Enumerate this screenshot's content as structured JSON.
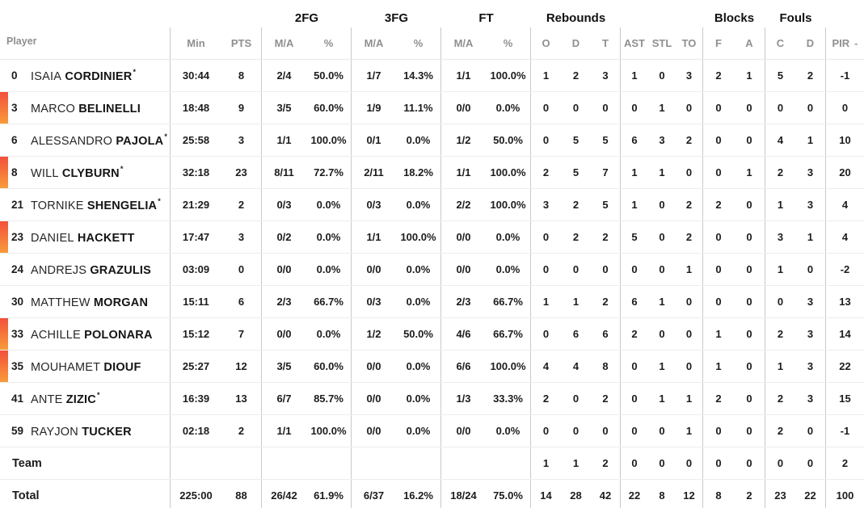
{
  "colors": {
    "on_court_accent_top": "#f2503c",
    "on_court_accent_bottom": "#f89b3c",
    "header_gray": "#8f8f8f",
    "text": "#1c1c1c",
    "row_divider": "#ececec",
    "column_divider": "#c9c9c9"
  },
  "header": {
    "player_label": "Player",
    "group_labels": {
      "fg2": "2FG",
      "fg3": "3FG",
      "ft": "FT",
      "rebounds": "Rebounds",
      "blocks": "Blocks",
      "fouls": "Fouls"
    },
    "col_labels": {
      "min": "Min",
      "pts": "PTS",
      "ma": "M/A",
      "pct": "%",
      "reb_o": "O",
      "reb_d": "D",
      "reb_t": "T",
      "ast": "AST",
      "stl": "STL",
      "to": "TO",
      "blk_f": "F",
      "blk_a": "A",
      "foul_c": "C",
      "foul_d": "D",
      "pir": "PIR",
      "pir_sort_indicator": "-"
    }
  },
  "rows": [
    {
      "number": "0",
      "first": "ISAIA",
      "last": "CORDINIER",
      "star": "*",
      "on_court": false,
      "min": "30:44",
      "pts": "8",
      "fg2_ma": "2/4",
      "fg2_pct": "50.0%",
      "fg3_ma": "1/7",
      "fg3_pct": "14.3%",
      "ft_ma": "1/1",
      "ft_pct": "100.0%",
      "reb_o": "1",
      "reb_d": "2",
      "reb_t": "3",
      "ast": "1",
      "stl": "0",
      "to": "3",
      "blk_f": "2",
      "blk_a": "1",
      "foul_c": "5",
      "foul_d": "2",
      "pir": "-1"
    },
    {
      "number": "3",
      "first": "MARCO",
      "last": "BELINELLI",
      "on_court": true,
      "min": "18:48",
      "pts": "9",
      "fg2_ma": "3/5",
      "fg2_pct": "60.0%",
      "fg3_ma": "1/9",
      "fg3_pct": "11.1%",
      "ft_ma": "0/0",
      "ft_pct": "0.0%",
      "reb_o": "0",
      "reb_d": "0",
      "reb_t": "0",
      "ast": "0",
      "stl": "1",
      "to": "0",
      "blk_f": "0",
      "blk_a": "0",
      "foul_c": "0",
      "foul_d": "0",
      "pir": "0"
    },
    {
      "number": "6",
      "first": "ALESSANDRO",
      "last": "PAJOLA",
      "star": "*",
      "on_court": false,
      "min": "25:58",
      "pts": "3",
      "fg2_ma": "1/1",
      "fg2_pct": "100.0%",
      "fg3_ma": "0/1",
      "fg3_pct": "0.0%",
      "ft_ma": "1/2",
      "ft_pct": "50.0%",
      "reb_o": "0",
      "reb_d": "5",
      "reb_t": "5",
      "ast": "6",
      "stl": "3",
      "to": "2",
      "blk_f": "0",
      "blk_a": "0",
      "foul_c": "4",
      "foul_d": "1",
      "pir": "10"
    },
    {
      "number": "8",
      "first": "WILL",
      "last": "CLYBURN",
      "star": "*",
      "on_court": true,
      "min": "32:18",
      "pts": "23",
      "fg2_ma": "8/11",
      "fg2_pct": "72.7%",
      "fg3_ma": "2/11",
      "fg3_pct": "18.2%",
      "ft_ma": "1/1",
      "ft_pct": "100.0%",
      "reb_o": "2",
      "reb_d": "5",
      "reb_t": "7",
      "ast": "1",
      "stl": "1",
      "to": "0",
      "blk_f": "0",
      "blk_a": "1",
      "foul_c": "2",
      "foul_d": "3",
      "pir": "20"
    },
    {
      "number": "21",
      "first": "TORNIKE",
      "last": "SHENGELIA",
      "star": "*",
      "on_court": false,
      "min": "21:29",
      "pts": "2",
      "fg2_ma": "0/3",
      "fg2_pct": "0.0%",
      "fg3_ma": "0/3",
      "fg3_pct": "0.0%",
      "ft_ma": "2/2",
      "ft_pct": "100.0%",
      "reb_o": "3",
      "reb_d": "2",
      "reb_t": "5",
      "ast": "1",
      "stl": "0",
      "to": "2",
      "blk_f": "2",
      "blk_a": "0",
      "foul_c": "1",
      "foul_d": "3",
      "pir": "4"
    },
    {
      "number": "23",
      "first": "DANIEL",
      "last": "HACKETT",
      "on_court": true,
      "min": "17:47",
      "pts": "3",
      "fg2_ma": "0/2",
      "fg2_pct": "0.0%",
      "fg3_ma": "1/1",
      "fg3_pct": "100.0%",
      "ft_ma": "0/0",
      "ft_pct": "0.0%",
      "reb_o": "0",
      "reb_d": "2",
      "reb_t": "2",
      "ast": "5",
      "stl": "0",
      "to": "2",
      "blk_f": "0",
      "blk_a": "0",
      "foul_c": "3",
      "foul_d": "1",
      "pir": "4"
    },
    {
      "number": "24",
      "first": "ANDREJS",
      "last": "GRAZULIS",
      "on_court": false,
      "min": "03:09",
      "pts": "0",
      "fg2_ma": "0/0",
      "fg2_pct": "0.0%",
      "fg3_ma": "0/0",
      "fg3_pct": "0.0%",
      "ft_ma": "0/0",
      "ft_pct": "0.0%",
      "reb_o": "0",
      "reb_d": "0",
      "reb_t": "0",
      "ast": "0",
      "stl": "0",
      "to": "1",
      "blk_f": "0",
      "blk_a": "0",
      "foul_c": "1",
      "foul_d": "0",
      "pir": "-2"
    },
    {
      "number": "30",
      "first": "MATTHEW",
      "last": "MORGAN",
      "on_court": false,
      "min": "15:11",
      "pts": "6",
      "fg2_ma": "2/3",
      "fg2_pct": "66.7%",
      "fg3_ma": "0/3",
      "fg3_pct": "0.0%",
      "ft_ma": "2/3",
      "ft_pct": "66.7%",
      "reb_o": "1",
      "reb_d": "1",
      "reb_t": "2",
      "ast": "6",
      "stl": "1",
      "to": "0",
      "blk_f": "0",
      "blk_a": "0",
      "foul_c": "0",
      "foul_d": "3",
      "pir": "13"
    },
    {
      "number": "33",
      "first": "ACHILLE",
      "last": "POLONARA",
      "on_court": true,
      "min": "15:12",
      "pts": "7",
      "fg2_ma": "0/0",
      "fg2_pct": "0.0%",
      "fg3_ma": "1/2",
      "fg3_pct": "50.0%",
      "ft_ma": "4/6",
      "ft_pct": "66.7%",
      "reb_o": "0",
      "reb_d": "6",
      "reb_t": "6",
      "ast": "2",
      "stl": "0",
      "to": "0",
      "blk_f": "1",
      "blk_a": "0",
      "foul_c": "2",
      "foul_d": "3",
      "pir": "14"
    },
    {
      "number": "35",
      "first": "MOUHAMET",
      "last": "DIOUF",
      "on_court": true,
      "min": "25:27",
      "pts": "12",
      "fg2_ma": "3/5",
      "fg2_pct": "60.0%",
      "fg3_ma": "0/0",
      "fg3_pct": "0.0%",
      "ft_ma": "6/6",
      "ft_pct": "100.0%",
      "reb_o": "4",
      "reb_d": "4",
      "reb_t": "8",
      "ast": "0",
      "stl": "1",
      "to": "0",
      "blk_f": "1",
      "blk_a": "0",
      "foul_c": "1",
      "foul_d": "3",
      "pir": "22"
    },
    {
      "number": "41",
      "first": "ANTE",
      "last": "ZIZIC",
      "star": "*",
      "on_court": false,
      "min": "16:39",
      "pts": "13",
      "fg2_ma": "6/7",
      "fg2_pct": "85.7%",
      "fg3_ma": "0/0",
      "fg3_pct": "0.0%",
      "ft_ma": "1/3",
      "ft_pct": "33.3%",
      "reb_o": "2",
      "reb_d": "0",
      "reb_t": "2",
      "ast": "0",
      "stl": "1",
      "to": "1",
      "blk_f": "2",
      "blk_a": "0",
      "foul_c": "2",
      "foul_d": "3",
      "pir": "15"
    },
    {
      "number": "59",
      "first": "RAYJON",
      "last": "TUCKER",
      "on_court": false,
      "min": "02:18",
      "pts": "2",
      "fg2_ma": "1/1",
      "fg2_pct": "100.0%",
      "fg3_ma": "0/0",
      "fg3_pct": "0.0%",
      "ft_ma": "0/0",
      "ft_pct": "0.0%",
      "reb_o": "0",
      "reb_d": "0",
      "reb_t": "0",
      "ast": "0",
      "stl": "0",
      "to": "1",
      "blk_f": "0",
      "blk_a": "0",
      "foul_c": "2",
      "foul_d": "0",
      "pir": "-1"
    },
    {
      "label": "Team",
      "on_court": false,
      "min": "",
      "pts": "",
      "fg2_ma": "",
      "fg2_pct": "",
      "fg3_ma": "",
      "fg3_pct": "",
      "ft_ma": "",
      "ft_pct": "",
      "reb_o": "1",
      "reb_d": "1",
      "reb_t": "2",
      "ast": "0",
      "stl": "0",
      "to": "0",
      "blk_f": "0",
      "blk_a": "0",
      "foul_c": "0",
      "foul_d": "0",
      "pir": "2"
    },
    {
      "label": "Total",
      "on_court": false,
      "min": "225:00",
      "pts": "88",
      "fg2_ma": "26/42",
      "fg2_pct": "61.9%",
      "fg3_ma": "6/37",
      "fg3_pct": "16.2%",
      "ft_ma": "18/24",
      "ft_pct": "75.0%",
      "reb_o": "14",
      "reb_d": "28",
      "reb_t": "42",
      "ast": "22",
      "stl": "8",
      "to": "12",
      "blk_f": "8",
      "blk_a": "2",
      "foul_c": "23",
      "foul_d": "22",
      "pir": "100"
    }
  ]
}
